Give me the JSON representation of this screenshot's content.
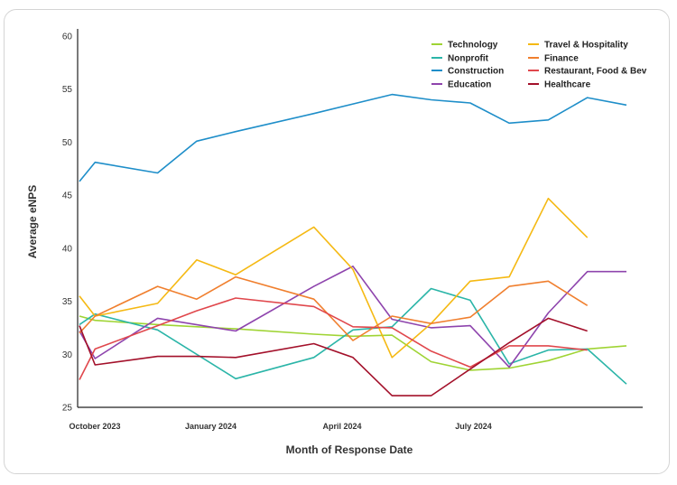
{
  "chart_data": {
    "type": "line",
    "xlabel": "Month of Response Date",
    "ylabel": "Average eNPS",
    "ylim": [
      25,
      60
    ],
    "yticks": [
      "25",
      "30",
      "35",
      "40",
      "45",
      "50",
      "55",
      "60"
    ],
    "xtick_labels": [
      {
        "label": "October 2023",
        "index": 0
      },
      {
        "label": "January 2024",
        "index": 3
      },
      {
        "label": "April 2024",
        "index": 6
      },
      {
        "label": "July 2024",
        "index": 9
      }
    ],
    "grid": false,
    "legend": "top-right",
    "x": [
      "2023-09",
      "2023-10",
      "2023-11",
      "2023-12",
      "2024-01",
      "2024-02",
      "2024-03",
      "2024-04",
      "2024-05",
      "2024-06",
      "2024-07",
      "2024-08",
      "2024-09",
      "2024-10",
      "2024-11"
    ],
    "series": [
      {
        "name": "Technology",
        "color": "#9fd434",
        "points": [
          [
            0,
            33.6
          ],
          [
            0.2,
            33.2
          ],
          [
            1,
            32.8
          ],
          [
            2,
            32.4
          ],
          [
            3,
            31.9
          ],
          [
            3.5,
            31.7
          ],
          [
            4,
            31.8
          ],
          [
            4.5,
            29.3
          ],
          [
            5,
            28.5
          ],
          [
            5.5,
            28.7
          ],
          [
            6,
            29.4
          ],
          [
            6.5,
            30.5
          ],
          [
            7,
            30.8
          ]
        ]
      },
      {
        "name": "Nonprofit",
        "color": "#2bb5a8",
        "points": [
          [
            0,
            32.8
          ],
          [
            0.2,
            33.8
          ],
          [
            1,
            32.3
          ],
          [
            2,
            27.7
          ],
          [
            3,
            29.7
          ],
          [
            3.5,
            32.3
          ],
          [
            4,
            32.6
          ],
          [
            4.5,
            36.2
          ],
          [
            5,
            35.1
          ],
          [
            5.5,
            29.1
          ],
          [
            6,
            30.4
          ],
          [
            6.5,
            30.5
          ],
          [
            7,
            27.2
          ]
        ]
      },
      {
        "name": "Construction",
        "color": "#1e8ec9",
        "points": [
          [
            0,
            46.3
          ],
          [
            0.2,
            48.1
          ],
          [
            1,
            47.1
          ],
          [
            1.5,
            50.1
          ],
          [
            2,
            51.0
          ],
          [
            3,
            52.7
          ],
          [
            4,
            54.5
          ],
          [
            4.5,
            54.0
          ],
          [
            5,
            53.7
          ],
          [
            5.5,
            51.8
          ],
          [
            6,
            52.1
          ],
          [
            6.5,
            54.2
          ],
          [
            7,
            53.5
          ]
        ]
      },
      {
        "name": "Education",
        "color": "#8e44ad",
        "points": [
          [
            0,
            32.2
          ],
          [
            0.2,
            29.6
          ],
          [
            1,
            33.4
          ],
          [
            2,
            32.2
          ],
          [
            3,
            36.4
          ],
          [
            3.5,
            38.3
          ],
          [
            4,
            33.3
          ],
          [
            4.5,
            32.5
          ],
          [
            5,
            32.7
          ],
          [
            5.5,
            28.8
          ],
          [
            6,
            33.9
          ],
          [
            6.5,
            37.8
          ],
          [
            7,
            37.8
          ]
        ]
      },
      {
        "name": "Travel & Hospitality",
        "color": "#f5b913",
        "points": [
          [
            0,
            35.5
          ],
          [
            0.2,
            33.6
          ],
          [
            1,
            34.8
          ],
          [
            1.5,
            38.9
          ],
          [
            2,
            37.5
          ],
          [
            3,
            42.0
          ],
          [
            3.5,
            38.0
          ],
          [
            4,
            29.7
          ],
          [
            4.5,
            32.9
          ],
          [
            5,
            36.9
          ],
          [
            5.5,
            37.3
          ],
          [
            6,
            44.7
          ],
          [
            6.5,
            41.0
          ]
        ]
      },
      {
        "name": "Finance",
        "color": "#f07f2e",
        "points": [
          [
            0,
            32.0
          ],
          [
            0.2,
            33.6
          ],
          [
            1,
            36.4
          ],
          [
            1.5,
            35.2
          ],
          [
            2,
            37.3
          ],
          [
            3,
            35.2
          ],
          [
            3.5,
            31.3
          ],
          [
            4,
            33.6
          ],
          [
            4.5,
            32.9
          ],
          [
            5,
            33.5
          ],
          [
            5.5,
            36.4
          ],
          [
            6,
            36.9
          ],
          [
            6.5,
            34.6
          ]
        ]
      },
      {
        "name": "Restaurant, Food & Bev",
        "color": "#e0474c",
        "points": [
          [
            0,
            27.6
          ],
          [
            0.2,
            30.5
          ],
          [
            1,
            32.7
          ],
          [
            1.5,
            34.1
          ],
          [
            2,
            35.3
          ],
          [
            3,
            34.5
          ],
          [
            3.5,
            32.6
          ],
          [
            4,
            32.5
          ],
          [
            4.5,
            30.3
          ],
          [
            5,
            28.8
          ],
          [
            5.5,
            30.8
          ],
          [
            6,
            30.8
          ],
          [
            6.5,
            30.4
          ]
        ]
      },
      {
        "name": "Healthcare",
        "color": "#a3102a",
        "points": [
          [
            0,
            32.7
          ],
          [
            0.2,
            29.0
          ],
          [
            1,
            29.8
          ],
          [
            1.5,
            29.8
          ],
          [
            2,
            29.7
          ],
          [
            3,
            31.0
          ],
          [
            3.5,
            29.7
          ],
          [
            4,
            26.1
          ],
          [
            4.5,
            26.1
          ],
          [
            5,
            28.6
          ],
          [
            5.5,
            31.1
          ],
          [
            6,
            33.4
          ],
          [
            6.5,
            32.2
          ]
        ]
      }
    ]
  }
}
